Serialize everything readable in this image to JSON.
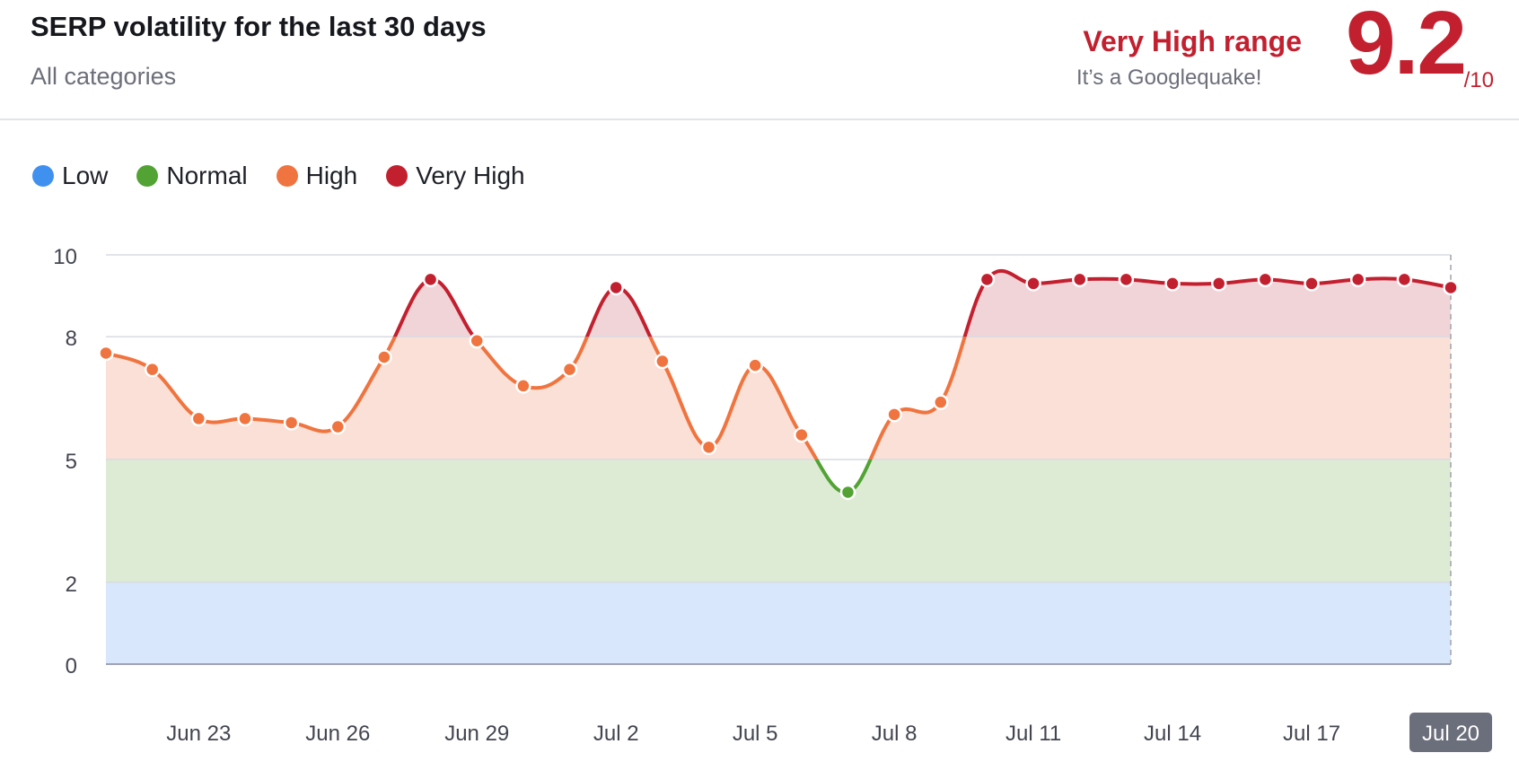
{
  "header": {
    "title": "SERP volatility for the last 30 days",
    "subtitle": "All categories",
    "range_label": "Very High range",
    "range_sub": "It’s a Googlequake!",
    "score": "9.2",
    "score_max": "/10"
  },
  "colors": {
    "low": "#4090f0",
    "normal": "#52a334",
    "high": "#f0743f",
    "very_high": "#c3202f",
    "accent": "#c3202f",
    "band_low": "#d8e7fb",
    "band_normal": "#ddebd5",
    "band_high": "#fae0d6",
    "band_very_high": "#f1d4d8"
  },
  "legend": [
    {
      "label": "Low",
      "color": "#4090f0"
    },
    {
      "label": "Normal",
      "color": "#52a334"
    },
    {
      "label": "High",
      "color": "#f0743f"
    },
    {
      "label": "Very High",
      "color": "#c3202f"
    }
  ],
  "chart_data": {
    "type": "area",
    "title": "SERP volatility for the last 30 days",
    "xlabel": "",
    "ylabel": "",
    "ylim": [
      0,
      10
    ],
    "y_ticks": [
      0,
      2,
      5,
      8,
      10
    ],
    "x_tick_labels": [
      "Jun 23",
      "Jun 26",
      "Jun 29",
      "Jul 2",
      "Jul 5",
      "Jul 8",
      "Jul 11",
      "Jul 14",
      "Jul 17",
      "Jul 20"
    ],
    "x_tick_indices": [
      2,
      5,
      8,
      11,
      14,
      17,
      20,
      23,
      26,
      29
    ],
    "highlighted_x_label": "Jul 20",
    "x": [
      "Jun 21",
      "Jun 22",
      "Jun 23",
      "Jun 24",
      "Jun 25",
      "Jun 26",
      "Jun 27",
      "Jun 28",
      "Jun 29",
      "Jun 30",
      "Jul 1",
      "Jul 2",
      "Jul 3",
      "Jul 4",
      "Jul 5",
      "Jul 6",
      "Jul 7",
      "Jul 8",
      "Jul 9",
      "Jul 10",
      "Jul 11",
      "Jul 12",
      "Jul 13",
      "Jul 14",
      "Jul 15",
      "Jul 16",
      "Jul 17",
      "Jul 18",
      "Jul 19",
      "Jul 20"
    ],
    "series": [
      {
        "values": [
          7.6,
          7.2,
          6.0,
          6.0,
          5.9,
          5.8,
          7.5,
          9.4,
          7.9,
          6.8,
          7.2,
          9.2,
          7.4,
          5.3,
          7.3,
          5.6,
          4.2,
          6.1,
          6.4,
          9.4,
          9.3,
          9.4,
          9.4,
          9.3,
          9.3,
          9.4,
          9.3,
          9.4,
          9.4,
          9.2
        ]
      }
    ],
    "bands": [
      {
        "label": "Low",
        "from": 0,
        "to": 2
      },
      {
        "label": "Normal",
        "from": 2,
        "to": 5
      },
      {
        "label": "High",
        "from": 5,
        "to": 8
      },
      {
        "label": "Very High",
        "from": 8,
        "to": 10
      }
    ],
    "grid": true
  }
}
